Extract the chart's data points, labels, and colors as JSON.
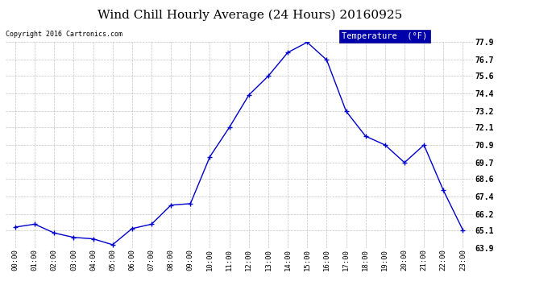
{
  "title": "Wind Chill Hourly Average (24 Hours) 20160925",
  "copyright_text": "Copyright 2016 Cartronics.com",
  "legend_label": "Temperature  (°F)",
  "x_labels": [
    "00:00",
    "01:00",
    "02:00",
    "03:00",
    "04:00",
    "05:00",
    "06:00",
    "07:00",
    "08:00",
    "09:00",
    "10:00",
    "11:00",
    "12:00",
    "13:00",
    "14:00",
    "15:00",
    "16:00",
    "17:00",
    "18:00",
    "19:00",
    "20:00",
    "21:00",
    "22:00",
    "23:00"
  ],
  "y_values": [
    65.3,
    65.5,
    64.9,
    64.6,
    64.5,
    64.1,
    65.2,
    65.5,
    66.8,
    66.9,
    70.1,
    72.1,
    74.3,
    75.6,
    77.2,
    77.9,
    76.7,
    73.2,
    71.5,
    70.9,
    69.7,
    70.9,
    67.8,
    65.1
  ],
  "y_ticks": [
    63.9,
    65.1,
    66.2,
    67.4,
    68.6,
    69.7,
    70.9,
    72.1,
    73.2,
    74.4,
    75.6,
    76.7,
    77.9
  ],
  "ylim": [
    63.9,
    77.9
  ],
  "line_color": "#0000cc",
  "marker_color": "#0000cc",
  "bg_color": "#ffffff",
  "grid_color": "#aaaaaa",
  "title_fontsize": 11,
  "legend_bg": "#0000aa",
  "legend_text_color": "#ffffff",
  "fig_width": 6.9,
  "fig_height": 3.75,
  "dpi": 100
}
